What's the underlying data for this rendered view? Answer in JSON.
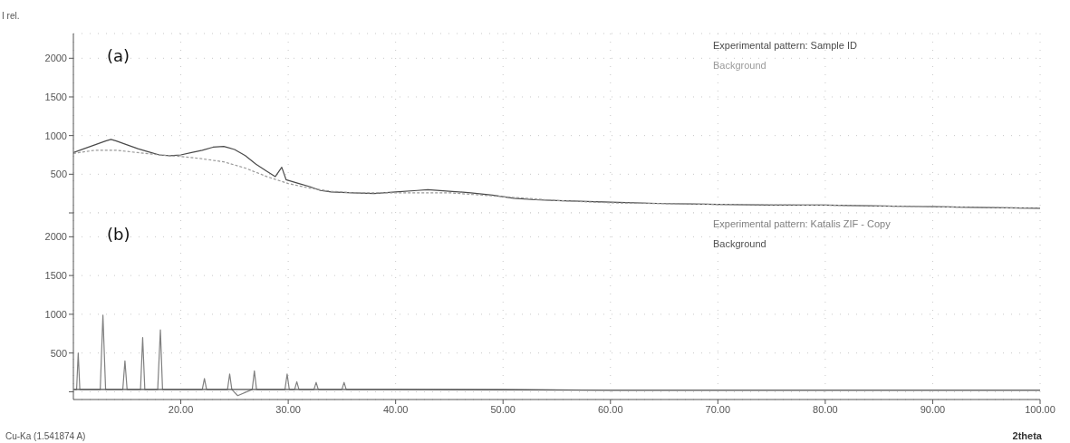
{
  "chart_data": [
    {
      "type": "line",
      "ylabel": "I rel.",
      "annotations": [
        "(a)"
      ],
      "xlim": [
        10,
        100
      ],
      "xticks": [
        20,
        30,
        40,
        50,
        60,
        70,
        80,
        90,
        100
      ],
      "ylim": [
        0,
        2320
      ],
      "yticks": [
        {
          "value": 0,
          "label": null
        },
        500,
        1000,
        1500,
        2000
      ],
      "tick_labels": "y",
      "grid": true,
      "legend": "top right",
      "series": [
        {
          "name": "Experimental pattern: Sample ID",
          "color": "#4a4a4a",
          "x": [
            10,
            11,
            12,
            13,
            13.5,
            14,
            15,
            16,
            17,
            18,
            19,
            20,
            21,
            22,
            23,
            24,
            25,
            26,
            27,
            28,
            28.8,
            29.4,
            29.8,
            30.5,
            31,
            32,
            33,
            34,
            36,
            38,
            40,
            42,
            43,
            45,
            47,
            49,
            51,
            53,
            55,
            60,
            65,
            70,
            75,
            80,
            85,
            90,
            95,
            100
          ],
          "values": [
            780,
            830,
            880,
            930,
            950,
            930,
            880,
            830,
            790,
            750,
            740,
            750,
            780,
            810,
            850,
            860,
            820,
            740,
            630,
            540,
            470,
            590,
            430,
            400,
            380,
            340,
            290,
            270,
            260,
            250,
            270,
            290,
            300,
            280,
            260,
            230,
            190,
            170,
            160,
            140,
            120,
            110,
            100,
            100,
            90,
            80,
            70,
            60
          ]
        },
        {
          "name": "Background",
          "color": "#9a9a9a",
          "line_style": "dashed",
          "x": [
            10,
            12,
            14,
            16,
            18,
            20,
            22,
            24,
            26,
            28,
            30,
            32,
            34,
            36,
            40,
            45,
            50,
            55,
            60,
            70,
            80,
            90,
            100
          ],
          "values": [
            770,
            810,
            810,
            780,
            750,
            730,
            700,
            660,
            580,
            470,
            380,
            320,
            280,
            260,
            260,
            260,
            210,
            160,
            130,
            110,
            100,
            80,
            60
          ]
        }
      ]
    },
    {
      "type": "line",
      "xlabel": "2theta",
      "annotations": [
        "(b)",
        "Cu-Ka (1.541874 A)"
      ],
      "xlim": [
        10,
        100
      ],
      "xticks": [
        {
          "value": 20,
          "label": "20.00"
        },
        {
          "value": 30,
          "label": "30.00"
        },
        {
          "value": 40,
          "label": "40.00"
        },
        {
          "value": 50,
          "label": "50.00"
        },
        {
          "value": 60,
          "label": "60.00"
        },
        {
          "value": 70,
          "label": "70.00"
        },
        {
          "value": 80,
          "label": "80.00"
        },
        {
          "value": 90,
          "label": "90.00"
        },
        {
          "value": 100,
          "label": "100.00"
        }
      ],
      "ylim": [
        -100,
        2320
      ],
      "yticks": [
        {
          "value": 0,
          "label": null
        },
        500,
        1000,
        1500,
        2000
      ],
      "grid": true,
      "legend": "top right",
      "series": [
        {
          "name": "Experimental pattern: Katalis ZIF - Copy",
          "color": "#808080",
          "x": [
            10.1,
            10.3,
            10.45,
            10.6,
            12.5,
            12.75,
            13.0,
            14.6,
            14.8,
            15.0,
            16.25,
            16.45,
            16.65,
            17.85,
            18.1,
            18.3,
            22.0,
            22.2,
            22.4,
            24.35,
            24.55,
            24.75,
            25.3,
            26.65,
            26.85,
            27.05,
            29.7,
            29.9,
            30.1,
            30.6,
            30.8,
            31.0,
            32.4,
            32.6,
            32.8,
            35.0,
            35.2,
            35.4,
            40,
            50,
            60,
            70,
            80,
            90,
            100
          ],
          "values": [
            30,
            30,
            500,
            30,
            30,
            990,
            30,
            30,
            400,
            30,
            30,
            700,
            30,
            30,
            800,
            30,
            30,
            170,
            30,
            30,
            230,
            30,
            -50,
            30,
            270,
            30,
            30,
            230,
            30,
            30,
            130,
            30,
            30,
            120,
            30,
            30,
            120,
            30,
            30,
            30,
            20,
            20,
            20,
            20,
            20
          ]
        },
        {
          "name": "Background",
          "color": "#505050",
          "x": [
            10,
            20,
            40,
            60,
            80,
            100
          ],
          "values": [
            30,
            30,
            30,
            20,
            20,
            20
          ]
        }
      ]
    }
  ]
}
